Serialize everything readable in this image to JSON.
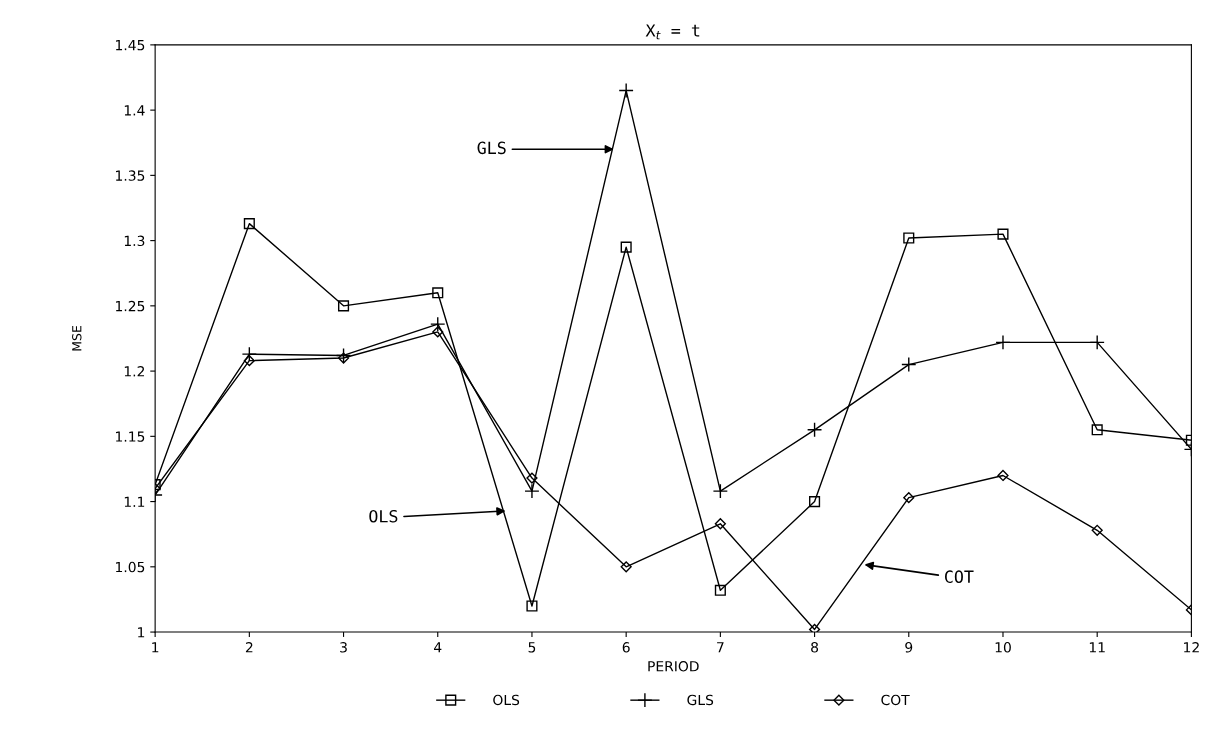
{
  "chart_data": {
    "type": "line",
    "title": "X$_{t}$ = t",
    "xlabel": "PERIOD",
    "ylabel": "MSE",
    "x": [
      1,
      2,
      3,
      4,
      5,
      6,
      7,
      8,
      9,
      10,
      11,
      12
    ],
    "xlim": [
      1,
      12
    ],
    "xticks": [
      1,
      2,
      3,
      4,
      5,
      6,
      7,
      8,
      9,
      10,
      11,
      12
    ],
    "ylim": [
      1,
      1.45
    ],
    "yticks": [
      1,
      {
        "value": 1.05,
        "label": "1.05"
      },
      {
        "value": 1.1,
        "label": "1.1"
      },
      {
        "value": 1.15,
        "label": "1.15"
      },
      {
        "value": 1.2,
        "label": "1.2"
      },
      {
        "value": 1.25,
        "label": "1.25"
      },
      {
        "value": 1.3,
        "label": "1.3"
      },
      {
        "value": 1.35,
        "label": "1.35"
      },
      {
        "value": 1.4,
        "label": "1.4"
      },
      {
        "value": 1.45,
        "label": "1.45"
      }
    ],
    "grid": false,
    "legend": "bottom",
    "line_style": "solid",
    "series": [
      {
        "name": "OLS",
        "color": "#000000",
        "marker": "square",
        "values": [
          1.113,
          1.313,
          1.25,
          1.26,
          1.02,
          1.295,
          1.032,
          1.1,
          1.302,
          1.305,
          1.155,
          1.147
        ]
      },
      {
        "name": "GLS",
        "color": "#000000",
        "marker": "cross",
        "values": [
          1.105,
          1.213,
          1.212,
          1.236,
          1.108,
          1.415,
          1.108,
          1.155,
          1.205,
          1.222,
          1.222,
          1.14
        ]
      },
      {
        "name": "COT",
        "color": "#000000",
        "marker": "diamond",
        "values": [
          1.11,
          1.208,
          1.21,
          1.23,
          1.118,
          1.05,
          1.083,
          1.002,
          1.103,
          1.12,
          1.078,
          1.017
        ]
      }
    ],
    "annotations": [
      {
        "text": "GLS",
        "x": 5.9,
        "y": 1.37
      },
      {
        "text": "OLS",
        "x": 4.75,
        "y": 1.093
      },
      {
        "text": "COT",
        "x": 8.5,
        "y": 1.052
      }
    ]
  }
}
